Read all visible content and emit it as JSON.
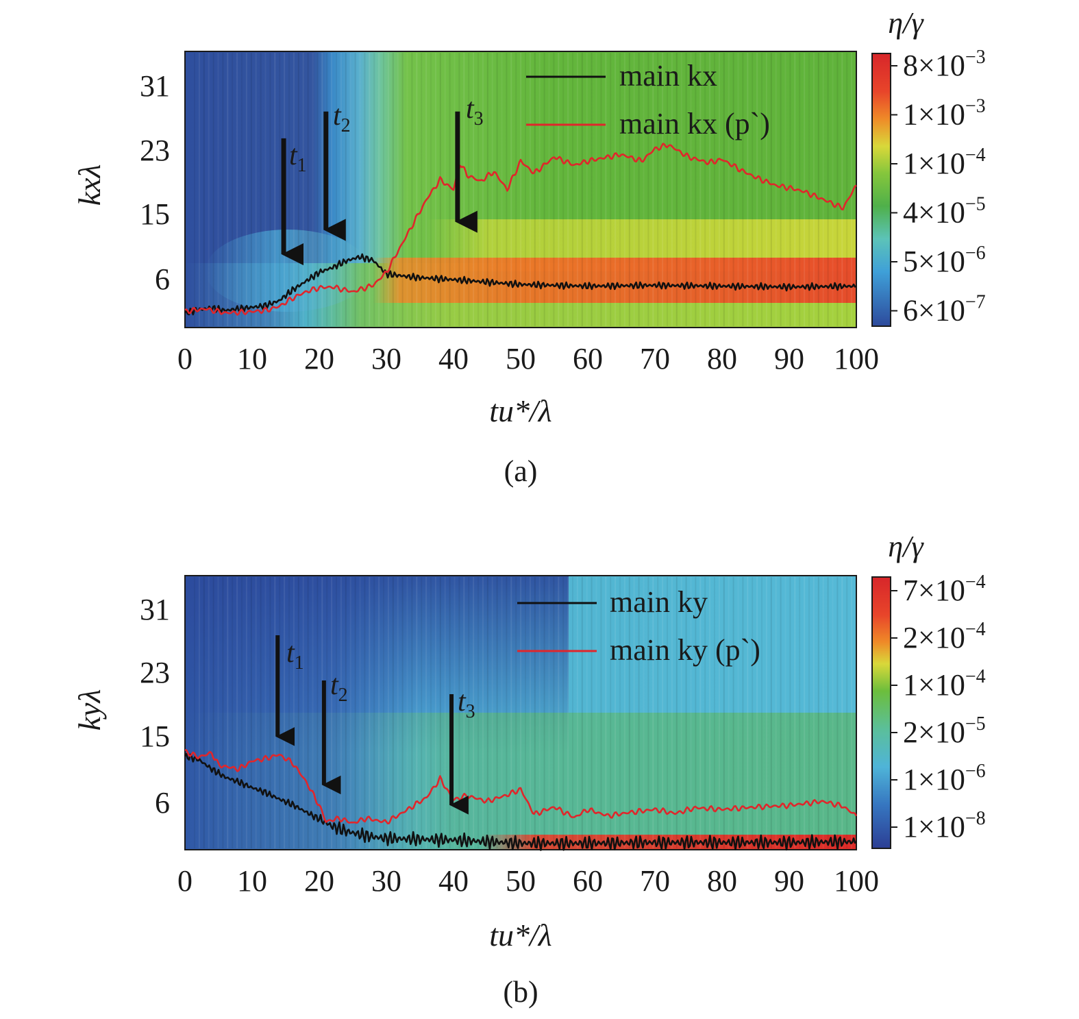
{
  "chart_data": [
    {
      "panel": "a",
      "type": "heatmap",
      "caption": "(a)",
      "xlabel": "tu*/λ",
      "ylabel": "kxλ",
      "xlim": [
        0,
        100
      ],
      "ylim": [
        1,
        35
      ],
      "xticks": [
        "0",
        "10",
        "20",
        "30",
        "40",
        "50",
        "60",
        "70",
        "80",
        "90",
        "100"
      ],
      "yticks": [
        "6",
        "15",
        "23",
        "31"
      ],
      "colorbar_title": "η/γ",
      "colorbar_labels": [
        "8×10−3",
        "1×10−3",
        "1×10−4",
        "4×10−5",
        "5×10−6",
        "6×10−7"
      ],
      "legend": [
        "main kx",
        "main kx (p`)"
      ],
      "annotations": [
        "t1",
        "t2",
        "t3"
      ],
      "arrows": [
        {
          "label": "t1",
          "x": 14.7,
          "y_top": 24.3,
          "y_tip": 8
        },
        {
          "label": "t2",
          "x": 21.0,
          "y_top": 27.6,
          "y_tip": 11
        },
        {
          "label": "t3",
          "x": 40.6,
          "y_top": 27.6,
          "y_tip": 12
        }
      ],
      "colors": {
        "low": "#2b4a9c",
        "mid": "#5cb037",
        "high": "#e33a1e",
        "main": "#111111",
        "pressure": "#e0262b"
      },
      "series": [
        {
          "name": "main kx",
          "color": "#111111",
          "x": [
            0,
            2,
            4,
            6,
            8,
            10,
            12,
            14,
            16,
            18,
            20,
            22,
            24,
            26,
            28,
            30,
            34,
            40,
            50,
            60,
            70,
            80,
            90,
            100
          ],
          "y": [
            2.8,
            3.2,
            3.4,
            3.1,
            3.3,
            3.5,
            3.7,
            4.3,
            5.6,
            6.7,
            7.8,
            8.4,
            9.2,
            9.7,
            9.3,
            7.6,
            7.2,
            6.9,
            6.3,
            6.1,
            6.2,
            6.1,
            6.0,
            6.1
          ]
        },
        {
          "name": "main kx (p`)",
          "color": "#e0262b",
          "x": [
            0,
            3,
            6,
            9,
            12,
            14,
            16,
            18,
            20,
            22,
            25,
            28,
            30,
            33,
            36,
            38,
            40,
            41,
            42,
            44,
            46,
            48,
            50,
            52,
            55,
            58,
            60,
            63,
            65,
            68,
            70,
            72,
            75,
            78,
            80,
            83,
            85,
            88,
            90,
            92,
            95,
            98,
            100
          ],
          "y": [
            3.0,
            3.3,
            2.8,
            2.9,
            3.1,
            3.6,
            4.6,
            5.4,
            5.9,
            6.0,
            5.4,
            6.2,
            7.8,
            12.3,
            16.8,
            19.2,
            18.0,
            21.2,
            19.8,
            19.0,
            20.2,
            18.0,
            21.5,
            20.0,
            22.0,
            21.0,
            21.5,
            22.0,
            22.3,
            21.5,
            23.0,
            23.5,
            22.0,
            21.3,
            21.7,
            20.3,
            19.5,
            18.5,
            18.2,
            17.8,
            16.8,
            15.7,
            18.5
          ]
        }
      ]
    },
    {
      "panel": "b",
      "type": "heatmap",
      "caption": "(b)",
      "xlabel": "tu*/λ",
      "ylabel": "kyλ",
      "xlim": [
        0,
        100
      ],
      "ylim": [
        1,
        35
      ],
      "xticks": [
        "0",
        "10",
        "20",
        "30",
        "40",
        "50",
        "60",
        "70",
        "80",
        "90",
        "100"
      ],
      "yticks": [
        "6",
        "15",
        "23",
        "31"
      ],
      "colorbar_title": "η/γ",
      "colorbar_labels": [
        "7×10−4",
        "2×10−4",
        "1×10−4",
        "2×10−5",
        "1×10−6",
        "1×10−8"
      ],
      "legend": [
        "main ky",
        "main ky (p`)"
      ],
      "annotations": [
        "t1",
        "t2",
        "t3"
      ],
      "arrows": [
        {
          "label": "t1",
          "x": 13.8,
          "y_top": 27.6,
          "y_tip": 13
        },
        {
          "label": "t2",
          "x": 20.7,
          "y_top": 22.0,
          "y_tip": 7
        },
        {
          "label": "t3",
          "x": 39.7,
          "y_top": 20.3,
          "y_tip": 4.5
        }
      ],
      "colors": {
        "low": "#2b4a9c",
        "mid": "#4eb8d4",
        "high": "#e33a1e",
        "main": "#111111",
        "pressure": "#e0262b"
      },
      "series": [
        {
          "name": "main ky",
          "color": "#111111",
          "x": [
            0,
            2,
            4,
            6,
            8,
            10,
            12,
            14,
            16,
            18,
            20,
            22,
            24,
            26,
            28,
            30,
            35,
            40,
            45,
            50,
            60,
            70,
            80,
            90,
            100
          ],
          "y": [
            12.6,
            12.2,
            11.0,
            10.0,
            9.4,
            8.7,
            8.1,
            7.3,
            6.6,
            5.7,
            4.8,
            3.9,
            3.3,
            2.9,
            2.6,
            2.4,
            2.3,
            2.2,
            2.0,
            1.8,
            1.8,
            1.9,
            1.9,
            1.9,
            2.0
          ]
        },
        {
          "name": "main ky (p`)",
          "color": "#e0262b",
          "x": [
            0,
            2,
            4,
            5,
            8,
            10,
            12,
            14,
            16,
            18,
            20,
            21,
            23,
            25,
            27,
            30,
            33,
            36,
            38,
            40,
            42,
            45,
            48,
            50,
            52,
            55,
            58,
            60,
            63,
            66,
            70,
            73,
            76,
            80,
            85,
            90,
            95,
            98,
            100
          ],
          "y": [
            13.2,
            12.5,
            13.0,
            11.5,
            11.0,
            12.0,
            12.3,
            12.8,
            11.8,
            9.5,
            6.5,
            4.5,
            4.9,
            4.3,
            4.9,
            4.4,
            5.9,
            7.5,
            9.8,
            7.2,
            7.7,
            7.0,
            7.8,
            8.5,
            5.4,
            6.3,
            5.0,
            6.0,
            5.2,
            5.6,
            6.0,
            5.5,
            6.2,
            6.0,
            6.3,
            6.5,
            7.0,
            6.4,
            5.2
          ]
        }
      ]
    }
  ]
}
